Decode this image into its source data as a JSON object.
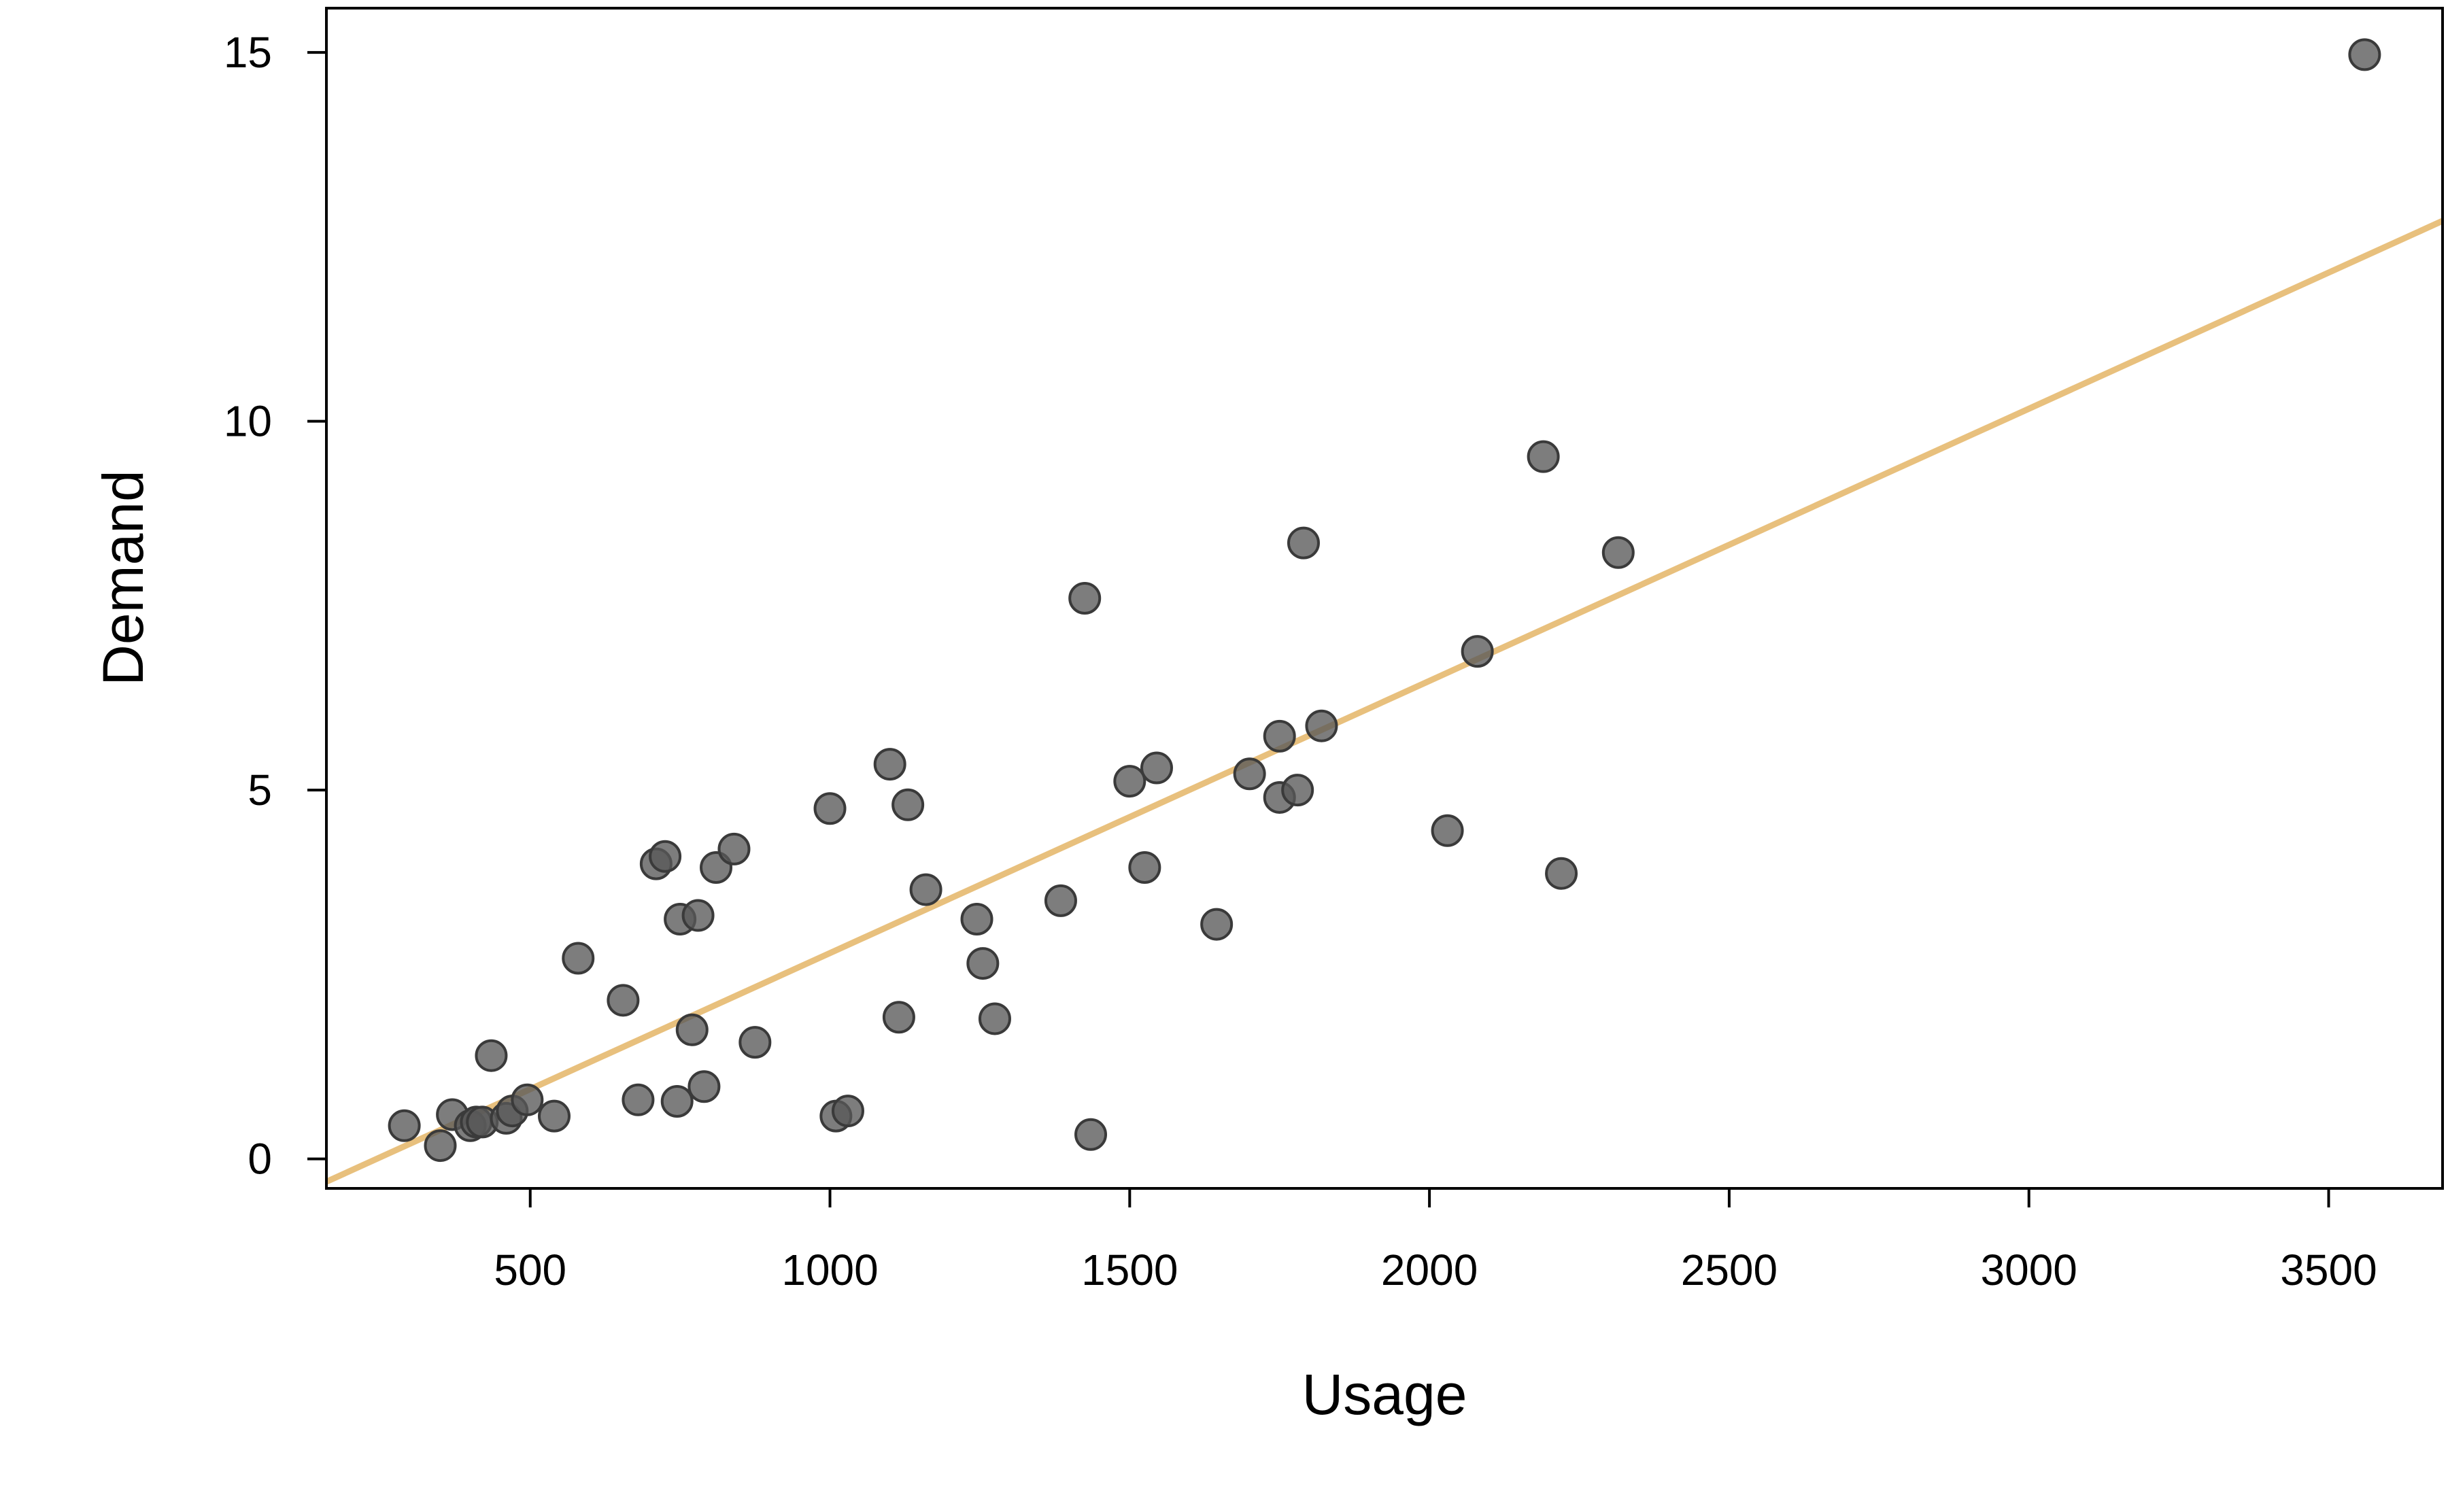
{
  "chart_data": {
    "type": "scatter",
    "title": "",
    "xlabel": "Usage",
    "ylabel": "Demand",
    "xlim": [
      160,
      3690
    ],
    "ylim": [
      -0.4,
      15.6
    ],
    "xticks": [
      500,
      1000,
      1500,
      2000,
      2500,
      3000,
      3500
    ],
    "yticks": [
      0,
      5,
      10,
      15
    ],
    "grid": false,
    "point_color": "#595959",
    "point_edge_color": "#3a3a3a",
    "fit_line_color": "#E8C07D",
    "fit_line": {
      "intercept": -0.9,
      "slope": 0.00369
    },
    "points": [
      {
        "x": 290,
        "y": 0.45
      },
      {
        "x": 350,
        "y": 0.18
      },
      {
        "x": 370,
        "y": 0.6
      },
      {
        "x": 400,
        "y": 0.45
      },
      {
        "x": 410,
        "y": 0.5
      },
      {
        "x": 420,
        "y": 0.5
      },
      {
        "x": 435,
        "y": 1.4
      },
      {
        "x": 460,
        "y": 0.55
      },
      {
        "x": 470,
        "y": 0.65
      },
      {
        "x": 495,
        "y": 0.8
      },
      {
        "x": 540,
        "y": 0.58
      },
      {
        "x": 580,
        "y": 2.72
      },
      {
        "x": 655,
        "y": 2.15
      },
      {
        "x": 680,
        "y": 0.8
      },
      {
        "x": 710,
        "y": 4.0
      },
      {
        "x": 725,
        "y": 4.1
      },
      {
        "x": 745,
        "y": 0.78
      },
      {
        "x": 750,
        "y": 3.25
      },
      {
        "x": 770,
        "y": 1.75
      },
      {
        "x": 780,
        "y": 3.3
      },
      {
        "x": 790,
        "y": 0.98
      },
      {
        "x": 810,
        "y": 3.95
      },
      {
        "x": 840,
        "y": 4.2
      },
      {
        "x": 875,
        "y": 1.58
      },
      {
        "x": 1000,
        "y": 4.75
      },
      {
        "x": 1010,
        "y": 0.58
      },
      {
        "x": 1030,
        "y": 0.65
      },
      {
        "x": 1100,
        "y": 5.35
      },
      {
        "x": 1115,
        "y": 1.92
      },
      {
        "x": 1130,
        "y": 4.8
      },
      {
        "x": 1160,
        "y": 3.65
      },
      {
        "x": 1245,
        "y": 3.25
      },
      {
        "x": 1255,
        "y": 2.65
      },
      {
        "x": 1275,
        "y": 1.9
      },
      {
        "x": 1385,
        "y": 3.5
      },
      {
        "x": 1425,
        "y": 7.6
      },
      {
        "x": 1435,
        "y": 0.33
      },
      {
        "x": 1500,
        "y": 5.12
      },
      {
        "x": 1525,
        "y": 3.95
      },
      {
        "x": 1545,
        "y": 5.3
      },
      {
        "x": 1645,
        "y": 3.18
      },
      {
        "x": 1700,
        "y": 5.22
      },
      {
        "x": 1750,
        "y": 5.73
      },
      {
        "x": 1750,
        "y": 4.9
      },
      {
        "x": 1780,
        "y": 5.0
      },
      {
        "x": 1790,
        "y": 8.35
      },
      {
        "x": 1820,
        "y": 5.87
      },
      {
        "x": 2030,
        "y": 4.45
      },
      {
        "x": 2080,
        "y": 6.88
      },
      {
        "x": 2190,
        "y": 9.52
      },
      {
        "x": 2220,
        "y": 3.87
      },
      {
        "x": 2315,
        "y": 8.22
      },
      {
        "x": 3560,
        "y": 14.97
      }
    ]
  }
}
